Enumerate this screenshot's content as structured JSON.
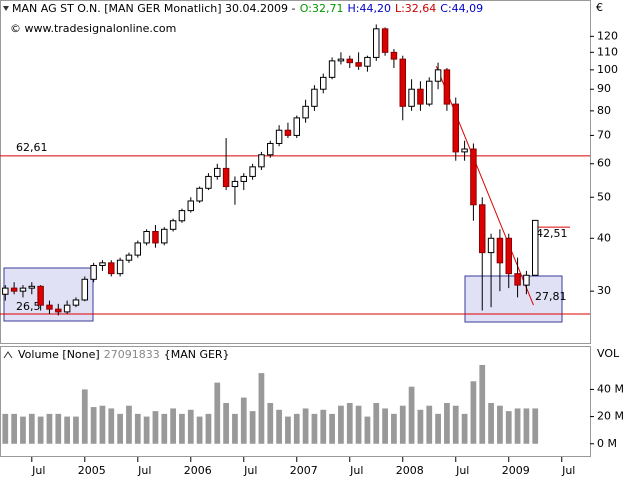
{
  "header": {
    "title": "MAN AG ST O.N. [MAN GER  Monatlich] 30.04.2009 -",
    "fields": [
      {
        "text": "O:32,71",
        "color": "#009900"
      },
      {
        "text": "H:44,20",
        "color": "#0000cc"
      },
      {
        "text": "L:32,64",
        "color": "#cc0000"
      },
      {
        "text": "C:44,09",
        "color": "#0000cc"
      }
    ],
    "watermark": "© www.tradesignalonline.com"
  },
  "chart_data": [
    {
      "type": "candlestick",
      "unit": "€",
      "log_scale": true,
      "up_color": "#ffffff",
      "down_color": "#dd0000",
      "open": [
        29.5,
        30.5,
        30,
        30.5,
        30.8,
        27.8,
        27.2,
        26.8,
        27.8,
        28.6,
        32,
        34.5,
        35,
        33,
        35.5,
        36.5,
        39,
        41.5,
        39,
        42,
        44,
        46.5,
        49,
        52.5,
        56,
        58.5,
        53,
        54.5,
        56,
        59,
        63,
        67,
        72,
        70,
        77,
        82,
        90,
        96,
        105,
        106,
        104,
        102,
        107,
        125,
        110,
        106,
        82,
        90,
        83,
        94,
        100,
        83,
        64,
        65,
        48,
        37,
        40,
        40,
        33,
        31,
        32.71
      ],
      "high": [
        31,
        31.5,
        31,
        31.5,
        31,
        28.5,
        28,
        28.5,
        29,
        32.5,
        35,
        35.5,
        35.5,
        36,
        37,
        39.5,
        42,
        43,
        42.5,
        44.5,
        47,
        50,
        53,
        57,
        60,
        69,
        56,
        57,
        60,
        64,
        68,
        74,
        75,
        78,
        85,
        92,
        98,
        107,
        110,
        108,
        110,
        108,
        128,
        126,
        112,
        108,
        95,
        94,
        96,
        104,
        101,
        86,
        68,
        67,
        50,
        41,
        42,
        41,
        36,
        33.5,
        44.2
      ],
      "low": [
        28.5,
        29.5,
        29,
        29.5,
        27,
        26.5,
        26.3,
        26.5,
        27.5,
        28.4,
        31.5,
        33.5,
        32.5,
        32.5,
        35,
        36,
        38.5,
        38,
        38.5,
        41.5,
        43.5,
        46,
        48.5,
        52,
        55,
        52,
        48,
        52,
        55,
        58,
        62,
        66,
        69,
        69,
        75,
        80,
        88,
        95,
        103,
        101,
        100,
        99,
        105,
        108,
        101,
        76,
        80,
        80,
        82,
        90,
        80,
        61,
        61,
        44,
        27,
        27.5,
        30,
        30.5,
        29,
        29.5,
        32.64
      ],
      "close": [
        30.5,
        30,
        30.5,
        30.8,
        27.8,
        27.2,
        26.8,
        27.8,
        28.6,
        32,
        34.5,
        35,
        33,
        35.5,
        36.5,
        39,
        41.5,
        39,
        42,
        44,
        46.5,
        49,
        52.5,
        56,
        58.5,
        53,
        54.5,
        56,
        59,
        63,
        67,
        72,
        70,
        77,
        82,
        90,
        96,
        105,
        106,
        104,
        102,
        107,
        125,
        110,
        106,
        82,
        90,
        83,
        94,
        100,
        83,
        64,
        65,
        48,
        37,
        40,
        35,
        33,
        31,
        32.71,
        44.09
      ],
      "ylim": [
        23,
        140
      ],
      "yticks": [
        30,
        40,
        50,
        60,
        70,
        80,
        90,
        100,
        110,
        120
      ],
      "xlim": [
        -0.6,
        66.2
      ],
      "xticks": [
        {
          "value": 3,
          "label": "Jul"
        },
        {
          "value": 9,
          "label": "2005"
        },
        {
          "value": 15,
          "label": "Jul"
        },
        {
          "value": 21,
          "label": "2006"
        },
        {
          "value": 27,
          "label": "Jul"
        },
        {
          "value": 33,
          "label": "2007"
        },
        {
          "value": 39,
          "label": "Jul"
        },
        {
          "value": 45,
          "label": "2008"
        },
        {
          "value": 51,
          "label": "Jul"
        },
        {
          "value": 57,
          "label": "2009"
        },
        {
          "value": 63,
          "label": "Jul"
        }
      ],
      "hlines": [
        {
          "value": 62.61,
          "label": "62,61"
        },
        {
          "value": 26.5,
          "label": "26,5"
        }
      ],
      "markers": [
        {
          "value": 42.51,
          "label": "42,51"
        },
        {
          "value": 27.81,
          "label": "27,81"
        }
      ],
      "trendline_start": 102,
      "line_color": "#dd0000"
    },
    {
      "type": "bar",
      "title": "Volume [None]",
      "title_value": "27091833",
      "title_suffix": "{MAN GER}",
      "axis_label": "VOL",
      "color": "#999999",
      "values": [
        22,
        22,
        20,
        22,
        20,
        22,
        22,
        20,
        20,
        40,
        27,
        28,
        26,
        22,
        28,
        22,
        20,
        24,
        22,
        26,
        22,
        25,
        20,
        22,
        45,
        30,
        22,
        34,
        24,
        52,
        30,
        25,
        20,
        22,
        26,
        22,
        25,
        22,
        28,
        30,
        28,
        20,
        30,
        26,
        22,
        28,
        42,
        25,
        28,
        22,
        30,
        28,
        22,
        46,
        58,
        30,
        28,
        24,
        26,
        26,
        26
      ],
      "ylim": [
        -9,
        69
      ],
      "yticks": [
        {
          "value": 0,
          "label": "0 M"
        },
        {
          "value": 20,
          "label": "20 M"
        },
        {
          "value": 40,
          "label": "40 M"
        }
      ]
    }
  ]
}
